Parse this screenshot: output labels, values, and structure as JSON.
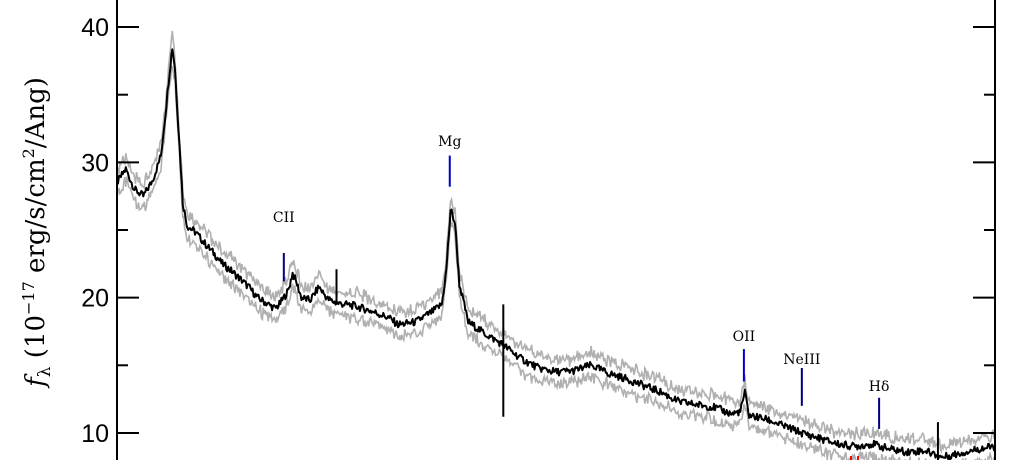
{
  "chart_data": {
    "type": "line",
    "title": "",
    "ylabel": {
      "symbol": "f",
      "subscript": "λ",
      "text_pre": " (10",
      "exponent": "−17",
      "text_mid": " erg/s/cm",
      "exponent2": "2",
      "text_post": "/Ang)"
    },
    "xlabel": "",
    "ylim": [
      8.0,
      42.0
    ],
    "xlim": [
      0,
      1
    ],
    "yticks": [
      {
        "value": 10,
        "label": "10"
      },
      {
        "value": 20,
        "label": "20"
      },
      {
        "value": 30,
        "label": "30"
      },
      {
        "value": 40,
        "label": "40"
      }
    ],
    "grid": false,
    "series": [
      {
        "color": "#000000",
        "error_color": "#b0b0b0",
        "points": [
          [
            0.0,
            28.5
          ],
          [
            0.01,
            29.5
          ],
          [
            0.02,
            28.0
          ],
          [
            0.03,
            27.5
          ],
          [
            0.04,
            28.6
          ],
          [
            0.045,
            29.5
          ],
          [
            0.05,
            30.5
          ],
          [
            0.055,
            33.5
          ],
          [
            0.06,
            36.8
          ],
          [
            0.063,
            38.5
          ],
          [
            0.066,
            37.0
          ],
          [
            0.07,
            32.5
          ],
          [
            0.075,
            27.0
          ],
          [
            0.08,
            25.3
          ],
          [
            0.09,
            24.8
          ],
          [
            0.1,
            24.0
          ],
          [
            0.11,
            23.3
          ],
          [
            0.12,
            22.5
          ],
          [
            0.13,
            22.0
          ],
          [
            0.14,
            21.4
          ],
          [
            0.15,
            20.8
          ],
          [
            0.16,
            20.0
          ],
          [
            0.17,
            19.6
          ],
          [
            0.18,
            19.2
          ],
          [
            0.185,
            19.5
          ],
          [
            0.195,
            20.5
          ],
          [
            0.2,
            21.8
          ],
          [
            0.205,
            21.0
          ],
          [
            0.21,
            20.0
          ],
          [
            0.22,
            19.8
          ],
          [
            0.23,
            20.8
          ],
          [
            0.24,
            19.9
          ],
          [
            0.25,
            19.6
          ],
          [
            0.27,
            19.4
          ],
          [
            0.29,
            19.0
          ],
          [
            0.31,
            18.5
          ],
          [
            0.32,
            18.0
          ],
          [
            0.34,
            18.2
          ],
          [
            0.36,
            19.0
          ],
          [
            0.37,
            19.5
          ],
          [
            0.375,
            22.0
          ],
          [
            0.38,
            26.5
          ],
          [
            0.385,
            25.5
          ],
          [
            0.39,
            21.0
          ],
          [
            0.4,
            18.2
          ],
          [
            0.42,
            17.3
          ],
          [
            0.44,
            16.5
          ],
          [
            0.46,
            15.5
          ],
          [
            0.48,
            14.8
          ],
          [
            0.5,
            14.5
          ],
          [
            0.52,
            14.6
          ],
          [
            0.54,
            15.0
          ],
          [
            0.56,
            14.4
          ],
          [
            0.58,
            14.0
          ],
          [
            0.6,
            13.5
          ],
          [
            0.62,
            13.0
          ],
          [
            0.64,
            12.3
          ],
          [
            0.66,
            12.1
          ],
          [
            0.68,
            11.9
          ],
          [
            0.7,
            11.4
          ],
          [
            0.71,
            11.6
          ],
          [
            0.715,
            13.0
          ],
          [
            0.72,
            11.3
          ],
          [
            0.74,
            11.0
          ],
          [
            0.76,
            10.5
          ],
          [
            0.78,
            10.0
          ],
          [
            0.8,
            9.6
          ],
          [
            0.82,
            9.2
          ],
          [
            0.84,
            9.0
          ],
          [
            0.86,
            9.2
          ],
          [
            0.88,
            8.8
          ],
          [
            0.9,
            8.6
          ],
          [
            0.92,
            8.7
          ],
          [
            0.94,
            8.2
          ],
          [
            0.96,
            8.5
          ],
          [
            0.98,
            8.8
          ],
          [
            1.0,
            9.0
          ]
        ]
      }
    ],
    "annotations": [
      {
        "label": "CII",
        "x": 0.19,
        "y_bottom": 21.2,
        "y_top": 23.3,
        "label_y": 25.6,
        "color": "#000080"
      },
      {
        "label": "Mg",
        "x": 0.379,
        "y_bottom": 28.2,
        "y_top": 30.5,
        "label_y": 31.2,
        "color": "#0000c8"
      },
      {
        "label": "OII",
        "x": 0.714,
        "y_bottom": 13.8,
        "y_top": 16.2,
        "label_y": 16.8,
        "color": "#0000c8"
      },
      {
        "label": "NeIII",
        "x": 0.78,
        "y_bottom": 12.0,
        "y_top": 14.8,
        "label_y": 15.1,
        "color": "#000080"
      },
      {
        "label": "Hδ",
        "x": 0.868,
        "y_bottom": 10.3,
        "y_top": 12.6,
        "label_y": 13.1,
        "color": "#000080"
      }
    ],
    "spikes": [
      {
        "x": 0.25,
        "low": 19.5,
        "high": 22.1
      },
      {
        "x": 0.44,
        "low": 11.2,
        "high": 19.5
      },
      {
        "x": 0.935,
        "low": 8.0,
        "high": 10.8
      }
    ],
    "markers": [
      {
        "x": 0.836,
        "color": "#ff0000"
      },
      {
        "x": 0.844,
        "color": "#ff0000"
      }
    ]
  }
}
